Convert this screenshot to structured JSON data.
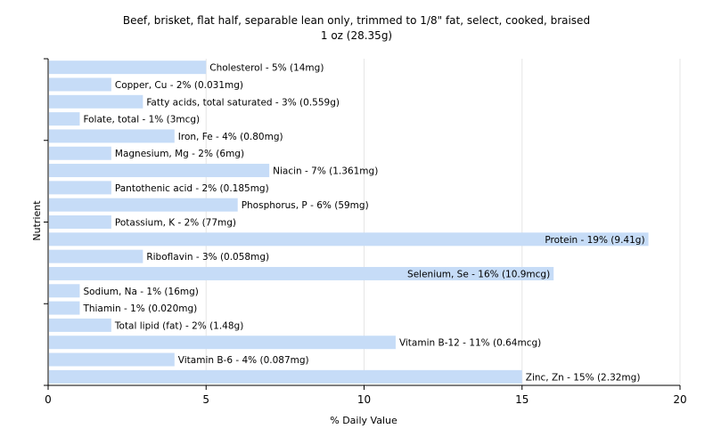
{
  "chart_data": {
    "type": "bar",
    "orientation": "horizontal",
    "title": "Beef, brisket, flat half, separable lean only, trimmed to 1/8\" fat, select, cooked, braised",
    "subtitle": "1 oz (28.35g)",
    "xlabel": "% Daily Value",
    "ylabel": "Nutrient",
    "xlim": [
      0,
      20
    ],
    "xticks": [
      0,
      5,
      10,
      15,
      20
    ],
    "grid": true,
    "bar_color": "#c6dcf7",
    "categories": [
      "Cholesterol",
      "Copper, Cu",
      "Fatty acids, total saturated",
      "Folate, total",
      "Iron, Fe",
      "Magnesium, Mg",
      "Niacin",
      "Pantothenic acid",
      "Phosphorus, P",
      "Potassium, K",
      "Protein",
      "Riboflavin",
      "Selenium, Se",
      "Sodium, Na",
      "Thiamin",
      "Total lipid (fat)",
      "Vitamin B-12",
      "Vitamin B-6",
      "Zinc, Zn"
    ],
    "values": [
      5,
      2,
      3,
      1,
      4,
      2,
      7,
      2,
      6,
      2,
      19,
      3,
      16,
      1,
      1,
      2,
      11,
      4,
      15
    ],
    "labels": [
      "Cholesterol - 5% (14mg)",
      "Copper, Cu - 2% (0.031mg)",
      "Fatty acids, total saturated - 3% (0.559g)",
      "Folate, total - 1% (3mcg)",
      "Iron, Fe - 4% (0.80mg)",
      "Magnesium, Mg - 2% (6mg)",
      "Niacin - 7% (1.361mg)",
      "Pantothenic acid - 2% (0.185mg)",
      "Phosphorus, P - 6% (59mg)",
      "Potassium, K - 2% (77mg)",
      "Protein - 19% (9.41g)",
      "Riboflavin - 3% (0.058mg)",
      "Selenium, Se - 16% (10.9mcg)",
      "Sodium, Na - 1% (16mg)",
      "Thiamin - 1% (0.020mg)",
      "Total lipid (fat) - 2% (1.48g)",
      "Vitamin B-12 - 11% (0.64mcg)",
      "Vitamin B-6 - 4% (0.087mg)",
      "Zinc, Zn - 15% (2.32mg)"
    ]
  }
}
